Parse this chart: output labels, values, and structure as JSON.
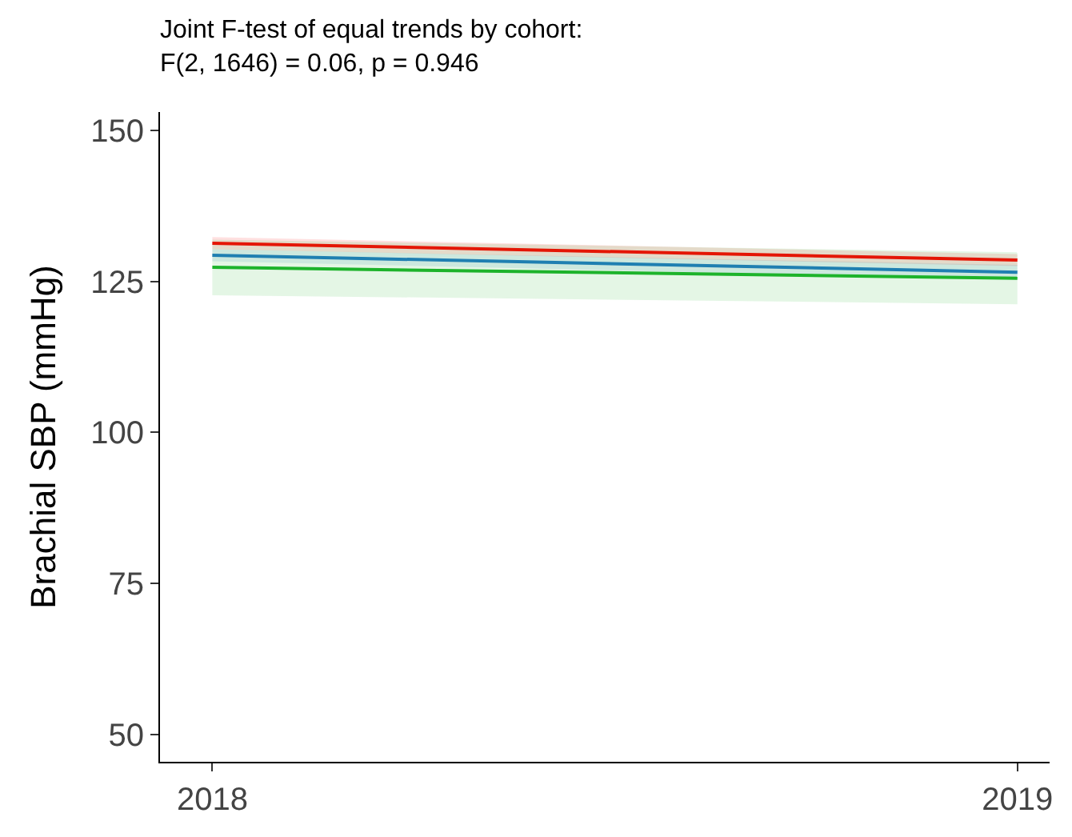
{
  "chart_data": {
    "type": "line",
    "title": "Joint F-test of equal trends by cohort:\nF(2, 1646) = 0.06, p = 0.946",
    "ylabel": "Brachial SBP (mmHg)",
    "x": [
      2018,
      2019
    ],
    "series": [
      {
        "color": "#ff0000",
        "values": [
          131.3,
          128.5
        ],
        "lower": [
          130.3,
          127.5
        ],
        "upper": [
          132.3,
          129.5
        ]
      },
      {
        "color": "#1f78c4",
        "values": [
          129.3,
          126.5
        ],
        "lower": [
          128.3,
          125.3
        ],
        "upper": [
          130.3,
          127.7
        ]
      },
      {
        "color": "#1db32b",
        "values": [
          127.3,
          125.5
        ],
        "lower": [
          122.7,
          121.2
        ],
        "upper": [
          131.9,
          129.8
        ]
      }
    ],
    "xlim": [
      2017.935,
      2019.04
    ],
    "xticks": [
      2018,
      2019
    ],
    "ylim": [
      45.5,
      153
    ],
    "yticks": [
      50,
      75,
      100,
      125,
      150
    ],
    "marker": "none",
    "line_style": "solid"
  }
}
